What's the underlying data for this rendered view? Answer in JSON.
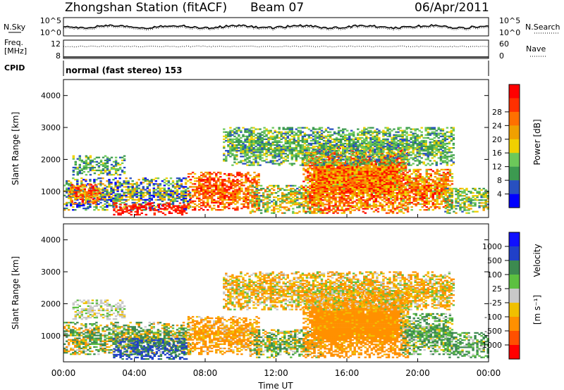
{
  "header": {
    "title": "Zhongshan Station (fitACF)",
    "beam": "Beam 07",
    "date": "06/Apr/2011"
  },
  "top_panels": {
    "nsky_label": "N.Sky",
    "nsearch_label": "N.Search",
    "noise_ticks_left": [
      "10^5",
      "10^0"
    ],
    "noise_ticks_right": [
      "10^5",
      "10^0"
    ],
    "freq_label_1": "Freq.",
    "freq_label_2": "[MHz]",
    "freq_ticks": [
      "12",
      "8"
    ],
    "nave_label": "Nave",
    "nave_ticks": [
      "60",
      "0"
    ],
    "cpid_label": "CPID",
    "cpid_text": "normal (fast stereo) 153"
  },
  "colors": {
    "power": [
      "#0000ff",
      "#2850c0",
      "#3c9a50",
      "#6cc85a",
      "#f0d000",
      "#f0a000",
      "#ff7000",
      "#ff3000",
      "#ff0000"
    ],
    "velocity": [
      "#1010ff",
      "#2040c8",
      "#3c8a50",
      "#5cc040",
      "#c8c8c8",
      "#f0c000",
      "#ff9000",
      "#ff5000",
      "#ff0000"
    ]
  },
  "chart_data": [
    {
      "type": "heatmap",
      "name": "power",
      "ylabel": "Slant Range [km]",
      "yticks": [
        "1000",
        "2000",
        "3000",
        "4000"
      ],
      "ylim": [
        180,
        4500
      ],
      "xlim": [
        0,
        24
      ],
      "xticks": [
        "00:00",
        "04:00",
        "08:00",
        "12:00",
        "16:00",
        "20:00",
        "00:00"
      ],
      "colorbar_label": "Power [dB]",
      "colorbar_ticks": [
        "4",
        "8",
        "12",
        "16",
        "20",
        "24",
        "28"
      ],
      "colorbar_range": [
        0,
        30
      ],
      "regions": [
        {
          "t0": 0.0,
          "t1": 7.2,
          "r0": 400,
          "r1": 1400,
          "mean": 10,
          "var": 10
        },
        {
          "t0": 2.8,
          "t1": 7.0,
          "r0": 250,
          "r1": 650,
          "mean": 27,
          "var": 3
        },
        {
          "t0": 0.3,
          "t1": 2.0,
          "r0": 600,
          "r1": 1200,
          "mean": 22,
          "var": 7
        },
        {
          "t0": 0.5,
          "t1": 3.5,
          "r0": 1500,
          "r1": 2100,
          "mean": 10,
          "var": 5
        },
        {
          "t0": 7.0,
          "t1": 11.0,
          "r0": 400,
          "r1": 1600,
          "mean": 22,
          "var": 7
        },
        {
          "t0": 10.5,
          "t1": 14.5,
          "r0": 300,
          "r1": 1200,
          "mean": 14,
          "var": 8
        },
        {
          "t0": 13.5,
          "t1": 19.5,
          "r0": 300,
          "r1": 2400,
          "mean": 21,
          "var": 8
        },
        {
          "t0": 19.0,
          "t1": 22.0,
          "r0": 400,
          "r1": 1700,
          "mean": 20,
          "var": 8
        },
        {
          "t0": 21.5,
          "t1": 24.0,
          "r0": 300,
          "r1": 1100,
          "mean": 12,
          "var": 6
        },
        {
          "t0": 9.0,
          "t1": 22.0,
          "r0": 1800,
          "r1": 3000,
          "mean": 10,
          "var": 5
        }
      ]
    },
    {
      "type": "heatmap",
      "name": "velocity",
      "ylabel": "Slant Range [km]",
      "yticks": [
        "1000",
        "2000",
        "3000",
        "4000"
      ],
      "ylim": [
        180,
        4500
      ],
      "xlim": [
        0,
        24
      ],
      "xticks": [
        "00:00",
        "04:00",
        "08:00",
        "12:00",
        "16:00",
        "20:00",
        "00:00"
      ],
      "xlabel": "Time UT",
      "colorbar_label": "Velocity",
      "colorbar_unit": "[m s⁻¹]",
      "colorbar_ticks": [
        "1000",
        "500",
        "100",
        "25",
        "-25",
        "-100",
        "-500",
        "-1000"
      ],
      "colorbar_range": [
        -1200,
        1200
      ],
      "regions": [
        {
          "t0": 0.0,
          "t1": 7.2,
          "r0": 400,
          "r1": 1400,
          "mean": 50,
          "var": 250
        },
        {
          "t0": 2.8,
          "t1": 7.0,
          "r0": 250,
          "r1": 900,
          "mean": 600,
          "var": 400
        },
        {
          "t0": 0.5,
          "t1": 3.5,
          "r0": 1500,
          "r1": 2100,
          "mean": 0,
          "var": 40
        },
        {
          "t0": 7.0,
          "t1": 11.0,
          "r0": 400,
          "r1": 1600,
          "mean": -150,
          "var": 150
        },
        {
          "t0": 10.5,
          "t1": 14.5,
          "r0": 300,
          "r1": 1200,
          "mean": 50,
          "var": 200
        },
        {
          "t0": 13.5,
          "t1": 19.5,
          "r0": 300,
          "r1": 2400,
          "mean": -250,
          "var": 200
        },
        {
          "t0": 19.0,
          "t1": 22.0,
          "r0": 400,
          "r1": 1700,
          "mean": 80,
          "var": 150
        },
        {
          "t0": 21.5,
          "t1": 24.0,
          "r0": 300,
          "r1": 1100,
          "mean": 150,
          "var": 200
        },
        {
          "t0": 9.0,
          "t1": 22.0,
          "r0": 1800,
          "r1": 3000,
          "mean": -80,
          "var": 150
        }
      ]
    }
  ]
}
